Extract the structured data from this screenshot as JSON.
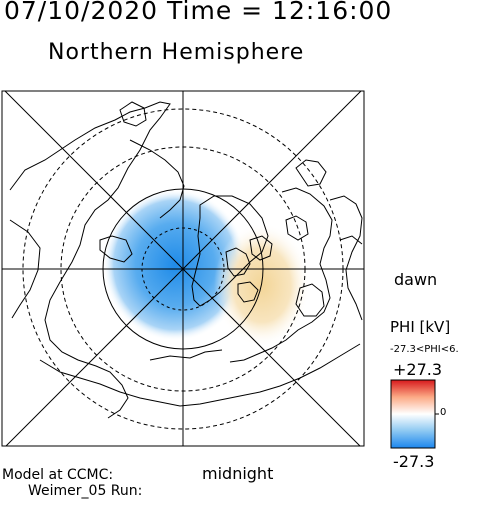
{
  "header": {
    "datetime": "07/10/2020 Time = 12:16:00",
    "title": "Northern Hemisphere"
  },
  "map": {
    "projection": "polar",
    "orientation_labels": {
      "dawn": "dawn",
      "midnight": "midnight"
    }
  },
  "colorbar": {
    "quantity_label": "PHI [kV]",
    "range_text": "-27.3<PHI<6.",
    "max_label": "+27.3",
    "zero_label": "0",
    "min_label": "-27.3",
    "colors": {
      "positive": "#e31a1c",
      "neutral": "#ffffff",
      "negative": "#1e90ff"
    }
  },
  "credits": {
    "line1": "Model at CCMC:",
    "line2": "Weimer_05 Run:"
  },
  "colors": {
    "cell_negative": "#3a9bea",
    "cell_positive": "#f6dca4",
    "continent_line": "#000000",
    "grid_line": "#000000"
  }
}
